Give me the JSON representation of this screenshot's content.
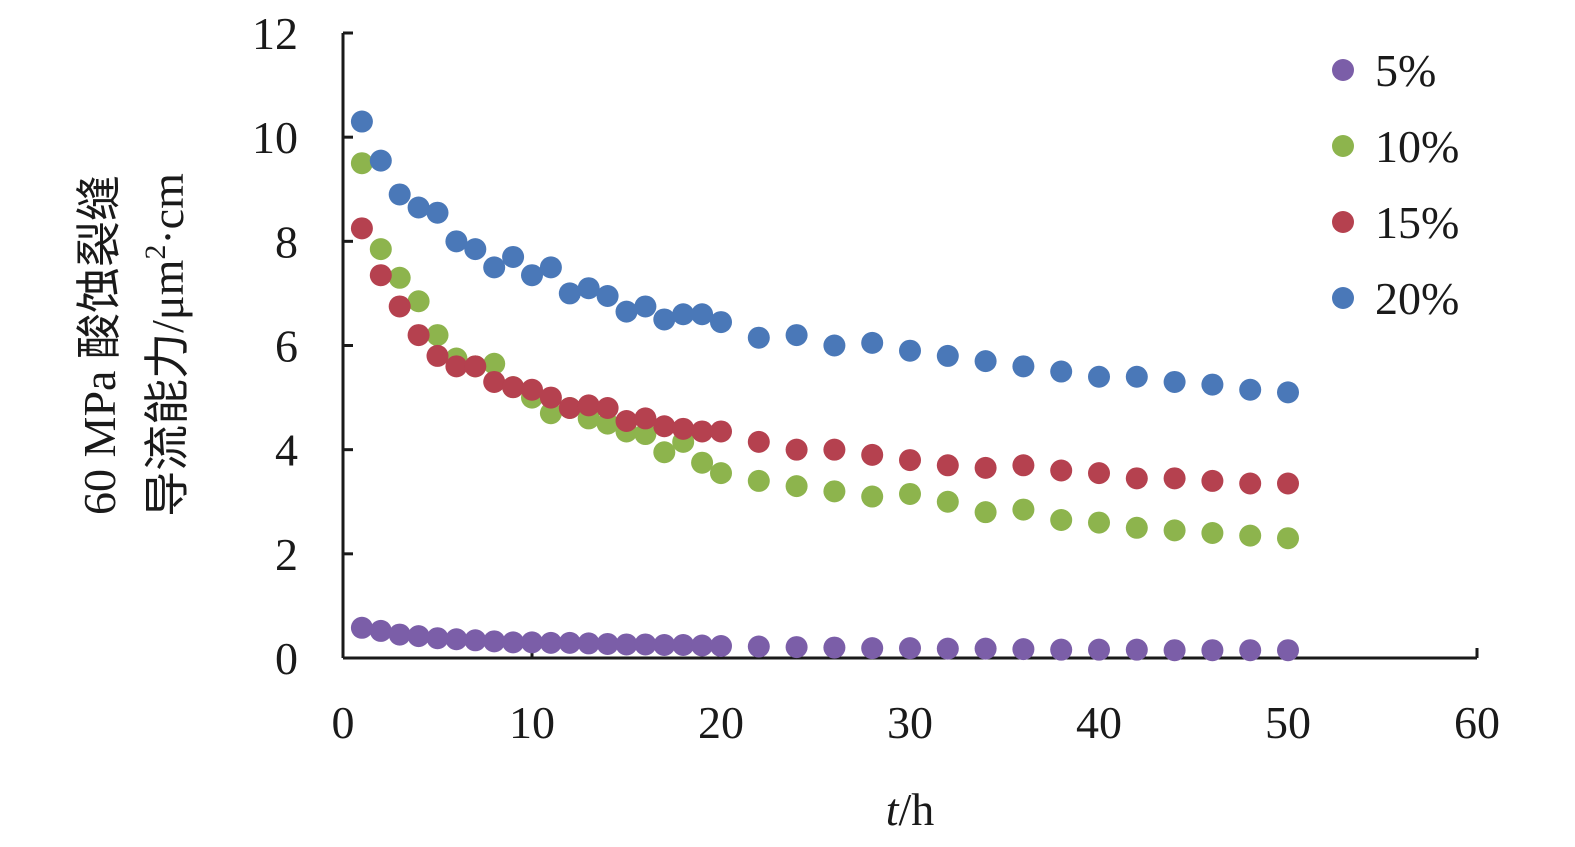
{
  "chart_data": {
    "type": "scatter",
    "title": "",
    "xlabel": {
      "italic": "t",
      "rest": "/h"
    },
    "ylabel": {
      "line1": "60 MPa 酸蚀裂缝",
      "line2_pre": "导流能力/μm",
      "line2_sup": "2",
      "line2_post": "·cm"
    },
    "xlim": [
      0,
      60
    ],
    "ylim": [
      0,
      12
    ],
    "xticks": [
      0,
      10,
      20,
      30,
      40,
      50,
      60
    ],
    "yticks": [
      0,
      2,
      4,
      6,
      8,
      10,
      12
    ],
    "legend_position": "top-right",
    "x": [
      1,
      2,
      3,
      4,
      5,
      6,
      7,
      8,
      9,
      10,
      11,
      12,
      13,
      14,
      15,
      16,
      17,
      18,
      19,
      20,
      22,
      24,
      26,
      28,
      30,
      32,
      34,
      36,
      38,
      40,
      42,
      44,
      46,
      48,
      50
    ],
    "series": [
      {
        "name": "5%",
        "color": "#7b5ea8",
        "values": [
          0.58,
          0.52,
          0.45,
          0.42,
          0.38,
          0.36,
          0.34,
          0.32,
          0.3,
          0.3,
          0.29,
          0.29,
          0.28,
          0.27,
          0.26,
          0.26,
          0.25,
          0.25,
          0.24,
          0.23,
          0.22,
          0.21,
          0.2,
          0.19,
          0.19,
          0.18,
          0.18,
          0.17,
          0.16,
          0.16,
          0.16,
          0.15,
          0.15,
          0.15,
          0.15
        ]
      },
      {
        "name": "10%",
        "color": "#8db44d",
        "values": [
          9.5,
          7.85,
          7.3,
          6.85,
          6.2,
          5.75,
          5.6,
          5.65,
          5.2,
          5.0,
          4.7,
          4.8,
          4.6,
          4.5,
          4.35,
          4.3,
          3.95,
          4.15,
          3.75,
          3.55,
          3.4,
          3.3,
          3.2,
          3.1,
          3.15,
          3.0,
          2.8,
          2.85,
          2.65,
          2.6,
          2.5,
          2.45,
          2.4,
          2.35,
          2.3
        ]
      },
      {
        "name": "15%",
        "color": "#b5414f",
        "values": [
          8.25,
          7.35,
          6.75,
          6.2,
          5.8,
          5.6,
          5.6,
          5.3,
          5.2,
          5.15,
          5.0,
          4.8,
          4.85,
          4.8,
          4.55,
          4.6,
          4.45,
          4.4,
          4.35,
          4.35,
          4.15,
          4.0,
          4.0,
          3.9,
          3.8,
          3.7,
          3.65,
          3.7,
          3.6,
          3.55,
          3.45,
          3.45,
          3.4,
          3.35,
          3.35
        ]
      },
      {
        "name": "20%",
        "color": "#4a78b8",
        "values": [
          10.3,
          9.55,
          8.9,
          8.65,
          8.55,
          8.0,
          7.85,
          7.5,
          7.7,
          7.35,
          7.5,
          7.0,
          7.1,
          6.95,
          6.65,
          6.75,
          6.5,
          6.6,
          6.6,
          6.45,
          6.15,
          6.2,
          6.0,
          6.05,
          5.9,
          5.8,
          5.7,
          5.6,
          5.5,
          5.4,
          5.4,
          5.3,
          5.25,
          5.15,
          5.1
        ]
      }
    ]
  }
}
